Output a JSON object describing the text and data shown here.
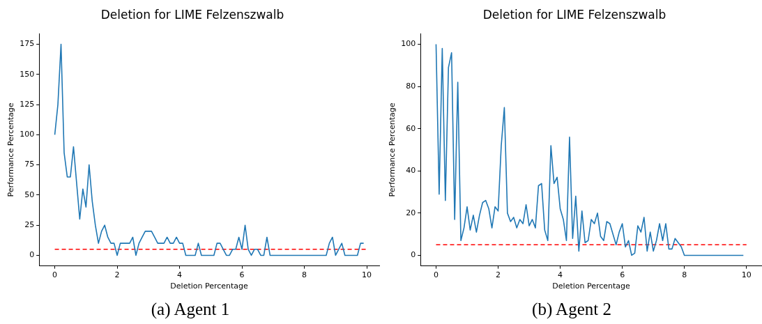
{
  "chart_data": [
    {
      "type": "line",
      "title": "Deletion for LIME Felzenszwalb",
      "xlabel": "Deletion Percentage",
      "ylabel": "Performance Percentage",
      "xlim": [
        -0.5,
        10.4
      ],
      "xticks": [
        0,
        2,
        4,
        6,
        8,
        10
      ],
      "ylim": [
        -8.75,
        183.75
      ],
      "yticks": [
        0,
        25,
        50,
        75,
        100,
        125,
        150,
        175
      ],
      "grid": false,
      "legend": false,
      "marker": "none",
      "annotations": [
        "(a) Agent 1"
      ],
      "series": [
        {
          "color": "#1f77b4",
          "x": [
            0,
            0.1,
            0.2,
            0.3,
            0.4,
            0.5,
            0.6,
            0.7,
            0.8,
            0.9,
            1,
            1.1,
            1.2,
            1.3,
            1.4,
            1.5,
            1.6,
            1.7,
            1.8,
            1.9,
            2,
            2.1,
            2.2,
            2.3,
            2.4,
            2.5,
            2.6,
            2.7,
            2.8,
            2.9,
            3,
            3.1,
            3.2,
            3.3,
            3.4,
            3.5,
            3.6,
            3.7,
            3.8,
            3.9,
            4,
            4.1,
            4.2,
            4.3,
            4.4,
            4.5,
            4.6,
            4.7,
            4.8,
            4.9,
            5,
            5.1,
            5.2,
            5.3,
            5.4,
            5.5,
            5.6,
            5.7,
            5.8,
            5.9,
            6,
            6.1,
            6.2,
            6.3,
            6.4,
            6.5,
            6.6,
            6.7,
            6.8,
            6.9,
            7,
            7.1,
            7.2,
            7.3,
            7.4,
            7.5,
            7.6,
            7.7,
            7.8,
            7.9,
            8,
            8.1,
            8.2,
            8.3,
            8.4,
            8.5,
            8.6,
            8.7,
            8.8,
            8.9,
            9,
            9.1,
            9.2,
            9.3,
            9.4,
            9.5,
            9.6,
            9.7,
            9.8,
            9.9
          ],
          "values": [
            100,
            125,
            175,
            85,
            65,
            65,
            90,
            60,
            30,
            55,
            40,
            75,
            45,
            25,
            10,
            20,
            25,
            15,
            10,
            10,
            0,
            10,
            10,
            10,
            10,
            15,
            0,
            10,
            15,
            20,
            20,
            20,
            15,
            10,
            10,
            10,
            15,
            10,
            10,
            15,
            10,
            10,
            0,
            0,
            0,
            0,
            10,
            0,
            0,
            0,
            0,
            0,
            10,
            10,
            5,
            0,
            0,
            5,
            5,
            15,
            5,
            25,
            5,
            0,
            5,
            5,
            0,
            0,
            15,
            0,
            0,
            0,
            0,
            0,
            0,
            0,
            0,
            0,
            0,
            0,
            0,
            0,
            0,
            0,
            0,
            0,
            0,
            0,
            10,
            15,
            0,
            5,
            10,
            0,
            0,
            0,
            0,
            0,
            10,
            10
          ]
        },
        {
          "type": "line",
          "color": "#ff0000",
          "line_style": "dashed",
          "x": [
            0,
            10
          ],
          "values": [
            5,
            5
          ]
        }
      ]
    },
    {
      "type": "line",
      "title": "Deletion for LIME Felzenszwalb",
      "xlabel": "Deletion Percentage",
      "ylabel": "Performance Percentage",
      "xlim": [
        -0.5,
        10.5
      ],
      "xticks": [
        0,
        2,
        4,
        6,
        8,
        10
      ],
      "ylim": [
        -5,
        105
      ],
      "yticks": [
        0,
        20,
        40,
        60,
        80,
        100
      ],
      "grid": false,
      "legend": false,
      "marker": "none",
      "annotations": [
        "(b) Agent 2"
      ],
      "series": [
        {
          "color": "#1f77b4",
          "x": [
            0,
            0.1,
            0.2,
            0.3,
            0.4,
            0.5,
            0.6,
            0.7,
            0.8,
            0.9,
            1,
            1.1,
            1.2,
            1.3,
            1.4,
            1.5,
            1.6,
            1.7,
            1.8,
            1.9,
            2,
            2.1,
            2.2,
            2.3,
            2.4,
            2.5,
            2.6,
            2.7,
            2.8,
            2.9,
            3,
            3.1,
            3.2,
            3.3,
            3.4,
            3.5,
            3.6,
            3.7,
            3.8,
            3.9,
            4,
            4.1,
            4.2,
            4.3,
            4.4,
            4.5,
            4.6,
            4.7,
            4.8,
            4.9,
            5,
            5.1,
            5.2,
            5.3,
            5.4,
            5.5,
            5.6,
            5.7,
            5.8,
            5.9,
            6,
            6.1,
            6.2,
            6.3,
            6.4,
            6.5,
            6.6,
            6.7,
            6.8,
            6.9,
            7,
            7.1,
            7.2,
            7.3,
            7.4,
            7.5,
            7.6,
            7.7,
            7.8,
            7.9,
            8,
            8.1,
            8.2,
            8.3,
            8.4,
            8.5,
            8.6,
            8.7,
            8.8,
            8.9,
            9,
            9.1,
            9.2,
            9.3,
            9.4,
            9.5,
            9.6,
            9.7,
            9.8,
            9.9
          ],
          "values": [
            100,
            29,
            98,
            26,
            89,
            96,
            17,
            82,
            7,
            13,
            23,
            12,
            19,
            11,
            19,
            25,
            26,
            22,
            13,
            23,
            21,
            52,
            70,
            20,
            16,
            18,
            13,
            17,
            15,
            24,
            14,
            17,
            13,
            33,
            34,
            12,
            7,
            52,
            34,
            37,
            22,
            17,
            7,
            56,
            8,
            28,
            2,
            21,
            6,
            7,
            17,
            15,
            20,
            9,
            7,
            16,
            15,
            10,
            5,
            11,
            15,
            4,
            7,
            0,
            1,
            14,
            11,
            18,
            2,
            11,
            2,
            7,
            15,
            7,
            15,
            3,
            3,
            8,
            6,
            4,
            0,
            0,
            0,
            0,
            0,
            0,
            0,
            0,
            0,
            0,
            0,
            0,
            0,
            0,
            0,
            0,
            0,
            0,
            0,
            0
          ]
        },
        {
          "type": "line",
          "color": "#ff0000",
          "line_style": "dashed",
          "x": [
            0,
            10
          ],
          "values": [
            5,
            5
          ]
        }
      ]
    }
  ]
}
